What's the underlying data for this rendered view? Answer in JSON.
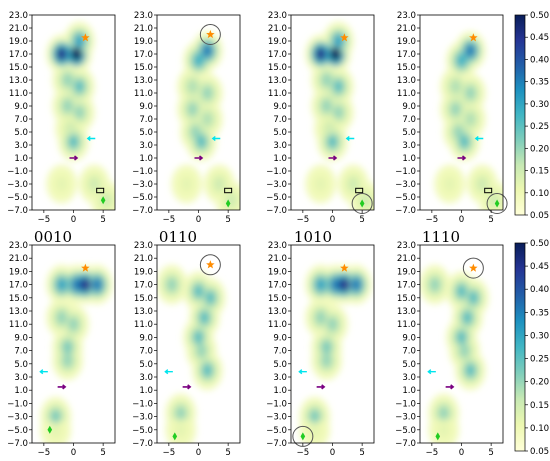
{
  "figure": {
    "row_labels": [
      "0010",
      "0110",
      "1010",
      "1110"
    ]
  },
  "colorbar": {
    "ticks": [
      "0.50",
      "0.45",
      "0.40",
      "0.35",
      "0.30",
      "0.25",
      "0.20",
      "0.15",
      "0.10",
      "0.05"
    ],
    "range": [
      0.05,
      0.5
    ],
    "colormap": [
      "#ffffd9",
      "#edf8b1",
      "#c7e9b4",
      "#7fcdbb",
      "#41b6c4",
      "#1d91c0",
      "#225ea8",
      "#253494",
      "#081d58"
    ]
  },
  "axes": {
    "xticks": [
      "−5",
      "0",
      "5"
    ],
    "xtick_values": [
      -5,
      0,
      5
    ],
    "yticks": [
      "23.0",
      "21.0",
      "19.0",
      "17.0",
      "15.0",
      "13.0",
      "11.0",
      "9.0",
      "7.0",
      "5.0",
      "3.0",
      "1.0",
      "−1.0",
      "−3.0",
      "−5.0",
      "−7.0"
    ],
    "ytick_values": [
      23,
      21,
      19,
      17,
      15,
      13,
      11,
      9,
      7,
      5,
      3,
      1,
      -1,
      -3,
      -5,
      -7
    ],
    "xlim": [
      -7,
      7
    ],
    "ylim": [
      -7,
      23
    ]
  },
  "markers": {
    "star_color": "#ff8c00",
    "cyan_arrow_color": "#00e5ee",
    "purple_arrow_color": "#7a0080",
    "diamond_color": "#22cc22",
    "square_color": "#000000",
    "circle_color": "#555555"
  },
  "chart_data": [
    {
      "type": "heatmap",
      "title": "0010",
      "row": 1,
      "col": 1,
      "cluster": "top",
      "blobs": [
        [
          -2,
          17,
          0.45
        ],
        [
          0.5,
          17,
          0.5
        ],
        [
          1,
          19,
          0.3
        ],
        [
          -1,
          13,
          0.2
        ],
        [
          1,
          12,
          0.25
        ],
        [
          -1,
          9,
          0.2
        ],
        [
          1,
          8,
          0.2
        ],
        [
          -0.5,
          5.5,
          0.15
        ],
        [
          0,
          3.5,
          0.25
        ],
        [
          -2,
          -3,
          0.12
        ],
        [
          3.5,
          -3,
          0.15
        ],
        [
          5.5,
          -5.5,
          0.15
        ]
      ],
      "star": [
        2,
        19.5
      ],
      "cyan_arrow": [
        3,
        4
      ],
      "purple_arrow": [
        0,
        1
      ],
      "square": [
        4.5,
        -4
      ],
      "diamond": [
        5,
        -5.5
      ],
      "circle": null
    },
    {
      "type": "heatmap",
      "title": "0110",
      "row": 1,
      "col": 2,
      "cluster": "top",
      "blobs": [
        [
          0,
          16,
          0.28
        ],
        [
          1.5,
          17.5,
          0.35
        ],
        [
          -1,
          12,
          0.18
        ],
        [
          1.5,
          11,
          0.2
        ],
        [
          -1,
          8.5,
          0.2
        ],
        [
          1.5,
          7,
          0.18
        ],
        [
          -0.5,
          5,
          0.2
        ],
        [
          0.5,
          3.5,
          0.25
        ],
        [
          -2,
          -3,
          0.12
        ],
        [
          3.5,
          -3,
          0.15
        ],
        [
          5.5,
          -5.5,
          0.15
        ]
      ],
      "star": [
        2,
        20
      ],
      "cyan_arrow": [
        3,
        4
      ],
      "purple_arrow": [
        0,
        1
      ],
      "square": [
        5,
        -4
      ],
      "diamond": [
        5,
        -6
      ],
      "circle": [
        2,
        20
      ]
    },
    {
      "type": "heatmap",
      "title": "1010",
      "row": 1,
      "col": 3,
      "cluster": "top",
      "blobs": [
        [
          -2,
          17,
          0.45
        ],
        [
          0.5,
          17,
          0.5
        ],
        [
          1,
          19,
          0.3
        ],
        [
          -1,
          13,
          0.2
        ],
        [
          1,
          12,
          0.25
        ],
        [
          -1,
          9,
          0.2
        ],
        [
          1,
          8,
          0.2
        ],
        [
          -0.5,
          5.5,
          0.15
        ],
        [
          0,
          3.5,
          0.25
        ],
        [
          -2,
          -3,
          0.12
        ],
        [
          3.5,
          -3,
          0.15
        ],
        [
          5.5,
          -5.5,
          0.15
        ]
      ],
      "star": [
        2,
        19.5
      ],
      "cyan_arrow": [
        3,
        4
      ],
      "purple_arrow": [
        0,
        1
      ],
      "square": [
        4.5,
        -4
      ],
      "diamond": [
        5,
        -6
      ],
      "circle": [
        5,
        -6
      ]
    },
    {
      "type": "heatmap",
      "title": "1110",
      "row": 1,
      "col": 4,
      "cluster": "top",
      "blobs": [
        [
          0,
          16,
          0.28
        ],
        [
          1.5,
          17.5,
          0.35
        ],
        [
          -1,
          12,
          0.18
        ],
        [
          1.5,
          11,
          0.2
        ],
        [
          -1,
          8.5,
          0.2
        ],
        [
          1.5,
          7,
          0.18
        ],
        [
          -0.5,
          5,
          0.2
        ],
        [
          0.5,
          3.5,
          0.25
        ],
        [
          -2,
          -3,
          0.12
        ],
        [
          3.5,
          -3,
          0.15
        ],
        [
          5.5,
          -5.5,
          0.15
        ]
      ],
      "star": [
        2,
        19.5
      ],
      "cyan_arrow": [
        3,
        4
      ],
      "purple_arrow": [
        0,
        1
      ],
      "square": [
        4.5,
        -4
      ],
      "diamond": [
        6,
        -6
      ],
      "circle": [
        6,
        -6
      ]
    },
    {
      "type": "heatmap",
      "title": "",
      "row": 2,
      "col": 1,
      "cluster": "bottom",
      "blobs": [
        [
          -2,
          17,
          0.3
        ],
        [
          0.5,
          17,
          0.35
        ],
        [
          2,
          17,
          0.45
        ],
        [
          4,
          17,
          0.35
        ],
        [
          -2,
          12,
          0.2
        ],
        [
          0,
          11,
          0.2
        ],
        [
          -1,
          7.5,
          0.22
        ],
        [
          -1,
          5.5,
          0.2
        ],
        [
          -3,
          -3,
          0.22
        ],
        [
          -3,
          -5,
          0.12
        ]
      ],
      "star": [
        2,
        19.5
      ],
      "cyan_arrow": [
        -5,
        3.8
      ],
      "purple_arrow": [
        -2,
        1.5
      ],
      "square": null,
      "diamond": [
        -4,
        -5
      ],
      "circle": null
    },
    {
      "type": "heatmap",
      "title": "",
      "row": 2,
      "col": 2,
      "cluster": "bottom",
      "blobs": [
        [
          0,
          16,
          0.25
        ],
        [
          2,
          15,
          0.25
        ],
        [
          1,
          12,
          0.25
        ],
        [
          0,
          9,
          0.25
        ],
        [
          0.5,
          7,
          0.2
        ],
        [
          1.5,
          4,
          0.25
        ],
        [
          -4.5,
          17,
          0.2
        ],
        [
          -3,
          -2.5,
          0.2
        ],
        [
          -3,
          -5,
          0.12
        ]
      ],
      "star": [
        2,
        20
      ],
      "cyan_arrow": [
        -5,
        3.8
      ],
      "purple_arrow": [
        -2,
        1.5
      ],
      "square": null,
      "diamond": [
        -4,
        -6
      ],
      "circle": [
        2,
        20
      ]
    },
    {
      "type": "heatmap",
      "title": "",
      "row": 2,
      "col": 3,
      "cluster": "bottom",
      "blobs": [
        [
          -2,
          17,
          0.3
        ],
        [
          0.5,
          17,
          0.35
        ],
        [
          2,
          17,
          0.45
        ],
        [
          4,
          17,
          0.35
        ],
        [
          -2,
          12,
          0.2
        ],
        [
          0,
          11,
          0.2
        ],
        [
          -1,
          7.5,
          0.22
        ],
        [
          -1,
          5.5,
          0.2
        ],
        [
          -3,
          -3,
          0.22
        ],
        [
          -3,
          -5,
          0.12
        ]
      ],
      "star": [
        2,
        19.5
      ],
      "cyan_arrow": [
        -5,
        3.8
      ],
      "purple_arrow": [
        -2,
        1.5
      ],
      "square": null,
      "diamond": [
        -5,
        -6
      ],
      "circle": [
        -5,
        -6
      ]
    },
    {
      "type": "heatmap",
      "title": "",
      "row": 2,
      "col": 4,
      "cluster": "bottom",
      "blobs": [
        [
          0,
          16,
          0.25
        ],
        [
          2,
          15,
          0.25
        ],
        [
          1,
          12,
          0.25
        ],
        [
          0,
          9,
          0.25
        ],
        [
          0.5,
          7,
          0.2
        ],
        [
          1.5,
          4,
          0.25
        ],
        [
          -4.5,
          17,
          0.2
        ],
        [
          -3,
          -2.5,
          0.2
        ],
        [
          -3,
          -5,
          0.12
        ]
      ],
      "star": [
        2,
        19.5
      ],
      "cyan_arrow": [
        -5,
        3.8
      ],
      "purple_arrow": [
        -2,
        1.5
      ],
      "square": null,
      "diamond": [
        -4,
        -6
      ],
      "circle": [
        2,
        19.5
      ]
    }
  ]
}
